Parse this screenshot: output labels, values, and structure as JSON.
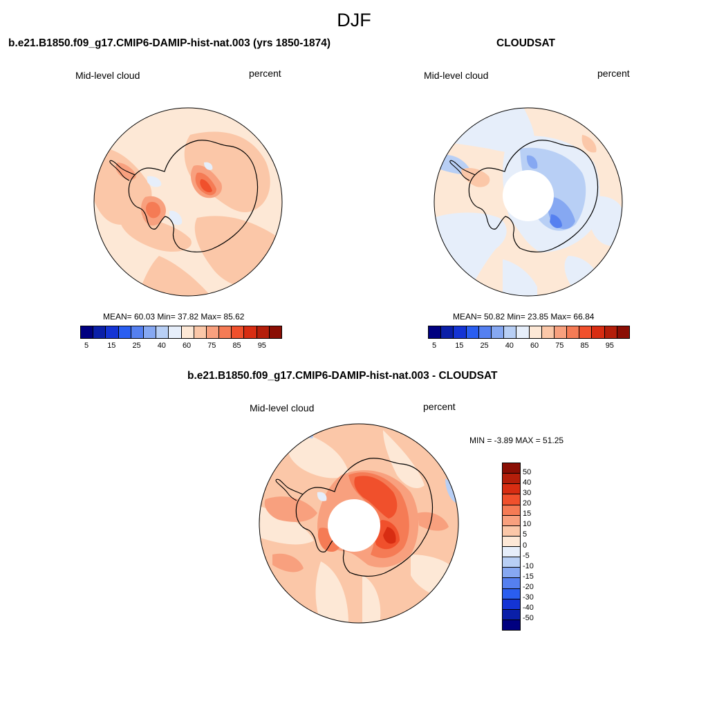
{
  "page": {
    "title": "DJF"
  },
  "panels": [
    {
      "id": "model",
      "title": "b.e21.B1850.f09_g17.CMIP6-DAMIP-hist-nat.003 (yrs 1850-1874)",
      "left_label": "Mid-level cloud",
      "right_label": "percent",
      "stats_text": "MEAN=  60.03  Min=  37.82  Max=  85.62",
      "mean": 60.03,
      "min": 37.82,
      "max": 85.62
    },
    {
      "id": "obs",
      "title": "CLOUDSAT",
      "left_label": "Mid-level cloud",
      "right_label": "percent",
      "stats_text": "MEAN=  50.82  Min=  23.85  Max=  66.84",
      "mean": 50.82,
      "min": 23.85,
      "max": 66.84
    },
    {
      "id": "diff",
      "title": "b.e21.B1850.f09_g17.CMIP6-DAMIP-hist-nat.003 - CLOUDSAT",
      "left_label": "Mid-level cloud",
      "right_label": "percent",
      "stats_text": "MIN =  -3.89 MAX =  51.25",
      "min": -3.89,
      "max": 51.25
    }
  ],
  "chart_data": [
    {
      "type": "heatmap",
      "projection": "south polar stereographic",
      "title": "b.e21.B1850.f09_g17.CMIP6-DAMIP-hist-nat.003 (yrs 1850-1874)",
      "variable": "Mid-level cloud",
      "units": "percent",
      "colorbar": {
        "orientation": "horizontal",
        "tick_labels": [
          "5",
          "15",
          "25",
          "40",
          "60",
          "75",
          "85",
          "95"
        ],
        "colors": [
          "#000080",
          "#0a1fa8",
          "#1434d4",
          "#2a5ef0",
          "#5580f0",
          "#86a8f2",
          "#b8cff5",
          "#e6eefa",
          "#fde8d6",
          "#fbc7a8",
          "#f8a07e",
          "#f57b55",
          "#f0502c",
          "#d82d12",
          "#b41e0a",
          "#8a0e04"
        ]
      },
      "stats": {
        "mean": 60.03,
        "min": 37.82,
        "max": 85.62
      }
    },
    {
      "type": "heatmap",
      "projection": "south polar stereographic",
      "title": "CLOUDSAT",
      "variable": "Mid-level cloud",
      "units": "percent",
      "colorbar": {
        "orientation": "horizontal",
        "tick_labels": [
          "5",
          "15",
          "25",
          "40",
          "60",
          "75",
          "85",
          "95"
        ],
        "colors": [
          "#000080",
          "#0a1fa8",
          "#1434d4",
          "#2a5ef0",
          "#5580f0",
          "#86a8f2",
          "#b8cff5",
          "#e6eefa",
          "#fde8d6",
          "#fbc7a8",
          "#f8a07e",
          "#f57b55",
          "#f0502c",
          "#d82d12",
          "#b41e0a",
          "#8a0e04"
        ]
      },
      "stats": {
        "mean": 50.82,
        "min": 23.85,
        "max": 66.84
      },
      "missing_data_region": "pole-hole"
    },
    {
      "type": "heatmap",
      "projection": "south polar stereographic",
      "title": "b.e21.B1850.f09_g17.CMIP6-DAMIP-hist-nat.003 - CLOUDSAT",
      "variable": "Mid-level cloud",
      "units": "percent",
      "colorbar": {
        "orientation": "vertical",
        "tick_labels": [
          "50",
          "40",
          "30",
          "20",
          "15",
          "10",
          "5",
          "0",
          "-5",
          "-10",
          "-15",
          "-20",
          "-30",
          "-40",
          "-50"
        ],
        "colors": [
          "#8a0e04",
          "#b41e0a",
          "#d82d12",
          "#f0502c",
          "#f57b55",
          "#f8a07e",
          "#fbc7a8",
          "#fde8d6",
          "#e6eefa",
          "#b8cff5",
          "#86a8f2",
          "#5580f0",
          "#2a5ef0",
          "#1434d4",
          "#0a1fa8",
          "#000080"
        ]
      },
      "stats": {
        "min": -3.89,
        "max": 51.25
      },
      "missing_data_region": "pole-hole"
    }
  ]
}
